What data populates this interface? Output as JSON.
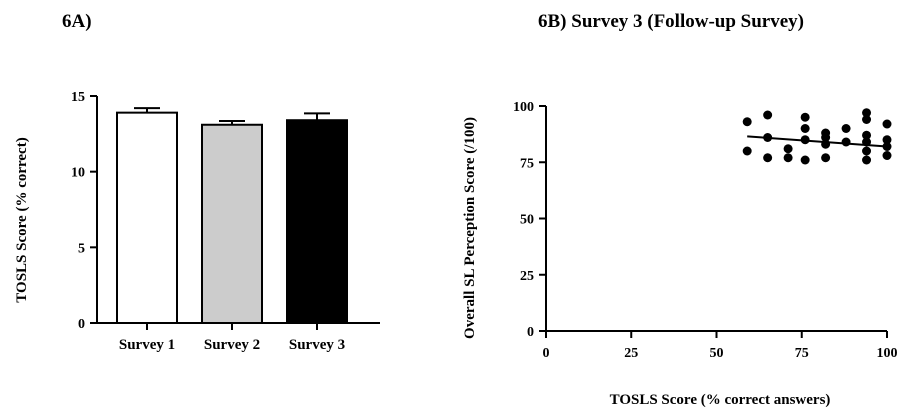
{
  "chart_data": [
    {
      "panel_label": "6A)",
      "type": "bar",
      "title": "",
      "xlabel": "",
      "ylabel": "TOSLS  Score  (% correct)",
      "ylim": [
        0,
        15
      ],
      "yticks": [
        "0",
        "5",
        "10",
        "15"
      ],
      "categories": [
        "Survey 1",
        "Survey 2",
        "Survey 3"
      ],
      "values": [
        13.9,
        13.1,
        13.4
      ],
      "errors": [
        0.3,
        0.25,
        0.45
      ],
      "bar_colors": [
        "#ffffff",
        "#cccccc",
        "#000000"
      ],
      "grid": false
    },
    {
      "panel_label": "6B)  Survey 3 (Follow-up Survey)",
      "type": "scatter",
      "title": "",
      "xlabel": "TOSLS  Score (% correct answers)",
      "ylabel": "Overall SL Perception  Score  (/100)",
      "xlim": [
        0,
        100
      ],
      "ylim": [
        0,
        100
      ],
      "xticks": [
        "0",
        "25",
        "50",
        "75",
        "100"
      ],
      "yticks": [
        "0",
        "25",
        "50",
        "75",
        "100"
      ],
      "points": [
        {
          "x": 59,
          "y": 93
        },
        {
          "x": 59,
          "y": 80
        },
        {
          "x": 65,
          "y": 96
        },
        {
          "x": 65,
          "y": 86
        },
        {
          "x": 65,
          "y": 77
        },
        {
          "x": 71,
          "y": 81
        },
        {
          "x": 71,
          "y": 77
        },
        {
          "x": 76,
          "y": 95
        },
        {
          "x": 76,
          "y": 90
        },
        {
          "x": 76,
          "y": 85
        },
        {
          "x": 76,
          "y": 76
        },
        {
          "x": 82,
          "y": 88
        },
        {
          "x": 82,
          "y": 86
        },
        {
          "x": 82,
          "y": 83
        },
        {
          "x": 82,
          "y": 77
        },
        {
          "x": 88,
          "y": 90
        },
        {
          "x": 88,
          "y": 84
        },
        {
          "x": 94,
          "y": 97
        },
        {
          "x": 94,
          "y": 94
        },
        {
          "x": 94,
          "y": 87
        },
        {
          "x": 94,
          "y": 84
        },
        {
          "x": 94,
          "y": 80
        },
        {
          "x": 94,
          "y": 76
        },
        {
          "x": 100,
          "y": 92
        },
        {
          "x": 100,
          "y": 85
        },
        {
          "x": 100,
          "y": 82
        },
        {
          "x": 100,
          "y": 78
        }
      ],
      "trendline": {
        "x": [
          59,
          100
        ],
        "y": [
          86.5,
          82
        ]
      },
      "grid": false
    }
  ]
}
